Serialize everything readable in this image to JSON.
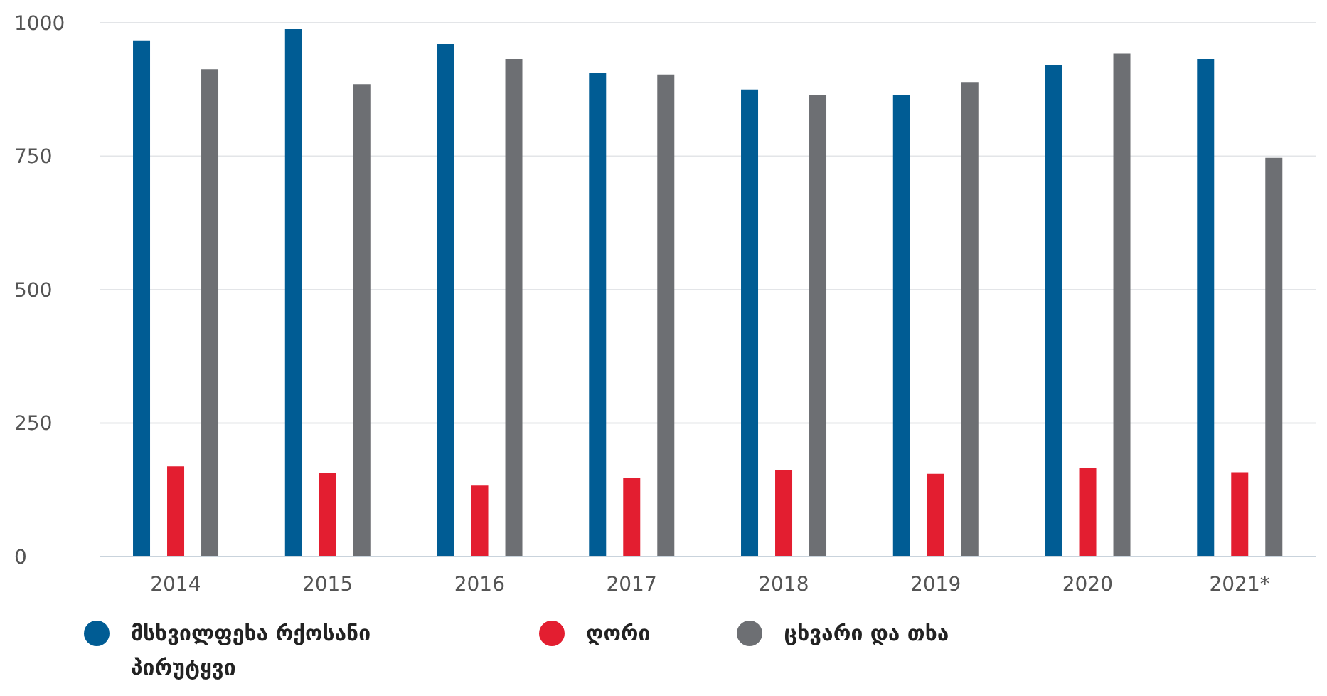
{
  "chart_data": {
    "type": "bar",
    "categories": [
      "2014",
      "2015",
      "2016",
      "2017",
      "2018",
      "2019",
      "2020",
      "2021*"
    ],
    "series": [
      {
        "name": "მსხვილფეხა რქოსანი პირუტყვი",
        "color": "#005c94",
        "values": [
          967,
          988,
          960,
          906,
          875,
          864,
          920,
          932
        ]
      },
      {
        "name": "ღორი",
        "color": "#e31e30",
        "values": [
          169,
          157,
          133,
          148,
          162,
          155,
          166,
          158
        ]
      },
      {
        "name": "ცხვარი და თხა",
        "color": "#6d6f73",
        "values": [
          913,
          885,
          932,
          903,
          864,
          889,
          942,
          747
        ]
      }
    ],
    "ylim": [
      0,
      1000
    ],
    "yticks": [
      0,
      250,
      500,
      750,
      1000
    ],
    "grid": "y",
    "legend": "bottom left"
  }
}
